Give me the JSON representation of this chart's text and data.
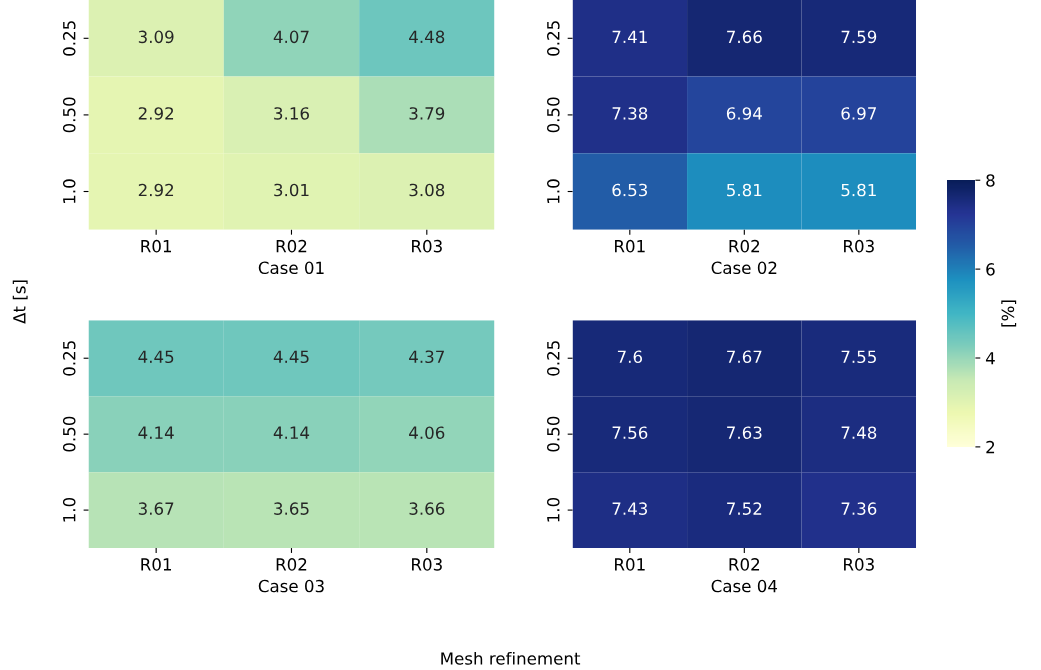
{
  "chart_data": [
    {
      "type": "heatmap",
      "xlabel": "Case 01",
      "ylabel": "Δt [s]",
      "annotations": [
        "Mesh refinement"
      ],
      "categories": [
        "R01",
        "R02",
        "R03"
      ],
      "y_categories": [
        "0.25",
        "0.50",
        "1.0"
      ],
      "cells": [
        [
          3.09,
          4.07,
          4.48
        ],
        [
          2.92,
          3.16,
          3.79
        ],
        [
          2.92,
          3.01,
          3.08
        ]
      ],
      "data_labels": true
    },
    {
      "type": "heatmap",
      "xlabel": "Case 02",
      "categories": [
        "R01",
        "R02",
        "R03"
      ],
      "y_categories": [
        "0.25",
        "0.50",
        "1.0"
      ],
      "cells": [
        [
          7.41,
          7.66,
          7.59
        ],
        [
          7.38,
          6.94,
          6.97
        ],
        [
          6.53,
          5.81,
          5.81
        ]
      ],
      "data_labels": true
    },
    {
      "type": "heatmap",
      "xlabel": "Case 03",
      "categories": [
        "R01",
        "R02",
        "R03"
      ],
      "y_categories": [
        "0.25",
        "0.50",
        "1.0"
      ],
      "cells": [
        [
          4.45,
          4.45,
          4.37
        ],
        [
          4.14,
          4.14,
          4.06
        ],
        [
          3.67,
          3.65,
          3.66
        ]
      ],
      "data_labels": true
    },
    {
      "type": "heatmap",
      "xlabel": "Case 04",
      "clabel": "[%]",
      "categories": [
        "R01",
        "R02",
        "R03"
      ],
      "y_categories": [
        "0.25",
        "0.50",
        "1.0"
      ],
      "cells": [
        [
          7.6,
          7.67,
          7.55
        ],
        [
          7.56,
          7.63,
          7.48
        ],
        [
          7.43,
          7.52,
          7.36
        ]
      ],
      "clim": [
        2,
        8
      ],
      "cticks": [
        2,
        4,
        6,
        8
      ],
      "data_labels": true
    }
  ]
}
